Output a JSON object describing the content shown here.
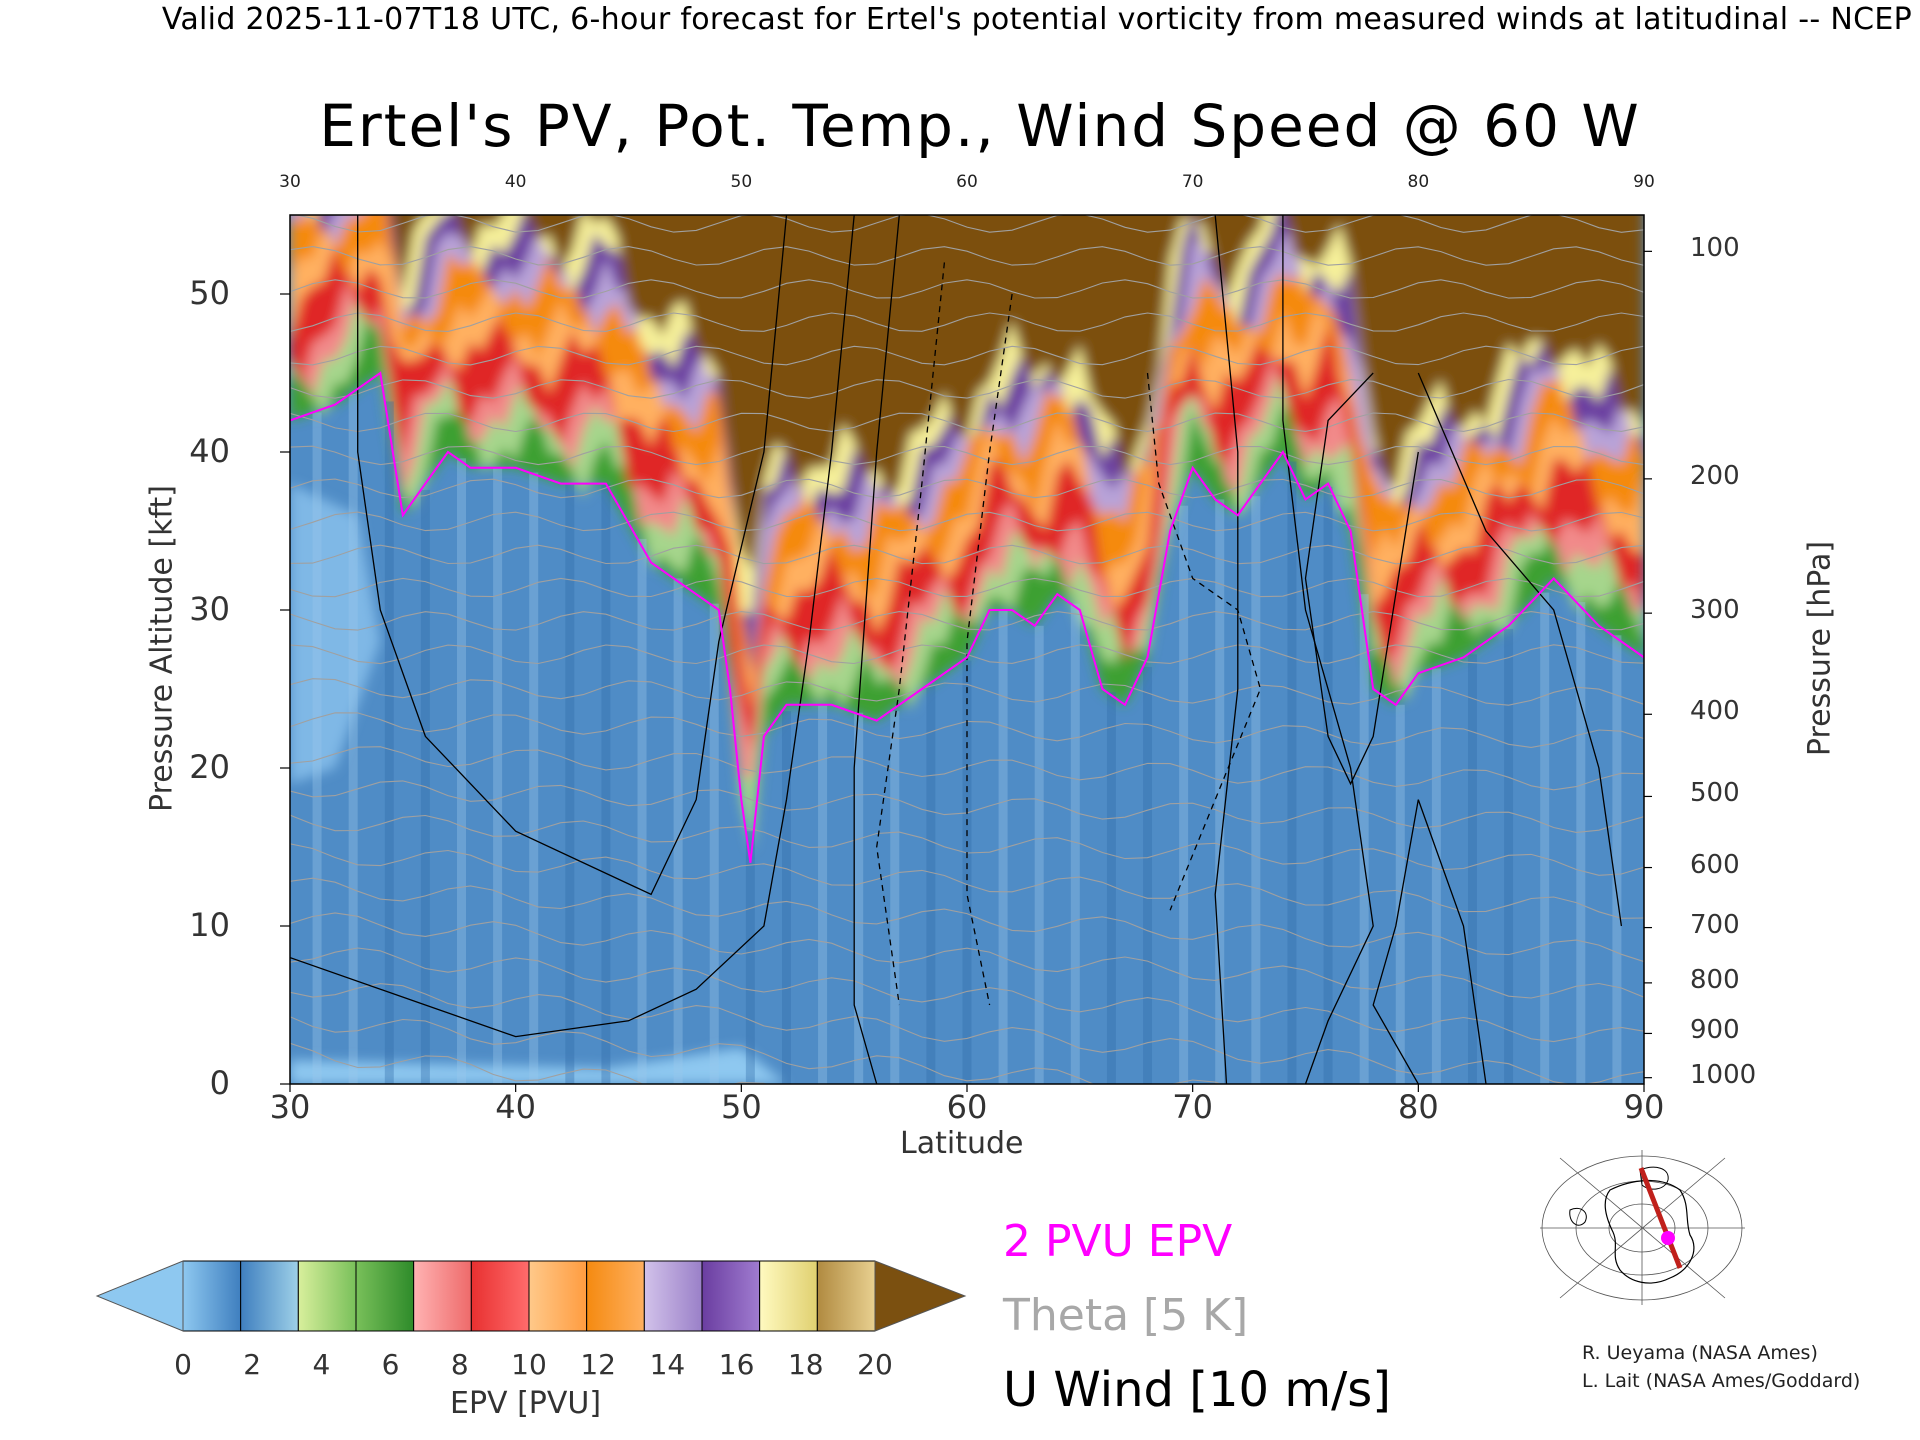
{
  "header": "Valid 2025-11-07T18 UTC, 6-hour forecast for Ertel's potential vorticity from measured winds at latitudinal -- NCEP",
  "chart_data": {
    "type": "heatmap",
    "title": "Ertel's PV, Pot. Temp., Wind Speed @ 60 W",
    "xlabel": "Latitude",
    "ylabel_left": "Pressure Altitude [kft]",
    "ylabel_right": "Pressure [hPa]",
    "xlim": [
      30,
      90
    ],
    "ylim": [
      0,
      55
    ],
    "x_ticks": [
      30,
      40,
      50,
      60,
      70,
      80,
      90
    ],
    "y_ticks": [
      0,
      10,
      20,
      30,
      40,
      50
    ],
    "right_ticks": [
      {
        "label": "100",
        "kft": 52.7
      },
      {
        "label": "200",
        "kft": 38.3
      },
      {
        "label": "300",
        "kft": 29.8
      },
      {
        "label": "400",
        "kft": 23.4
      },
      {
        "label": "500",
        "kft": 18.2
      },
      {
        "label": "600",
        "kft": 13.7
      },
      {
        "label": "700",
        "kft": 9.9
      },
      {
        "label": "800",
        "kft": 6.4
      },
      {
        "label": "900",
        "kft": 3.2
      },
      {
        "label": "1000",
        "kft": 0.4
      }
    ],
    "tropopause_2pvu_kft": [
      [
        30,
        42
      ],
      [
        32,
        43
      ],
      [
        33,
        44
      ],
      [
        34,
        45
      ],
      [
        35,
        36
      ],
      [
        36,
        38
      ],
      [
        37,
        40
      ],
      [
        38,
        39
      ],
      [
        40,
        39
      ],
      [
        42,
        38
      ],
      [
        44,
        38
      ],
      [
        46,
        33
      ],
      [
        48,
        31
      ],
      [
        49,
        30
      ],
      [
        49.5,
        25
      ],
      [
        50,
        18
      ],
      [
        50.4,
        14
      ],
      [
        51,
        22
      ],
      [
        52,
        24
      ],
      [
        54,
        24
      ],
      [
        56,
        23
      ],
      [
        58,
        25
      ],
      [
        60,
        27
      ],
      [
        61,
        30
      ],
      [
        62,
        30
      ],
      [
        63,
        29
      ],
      [
        64,
        31
      ],
      [
        65,
        30
      ],
      [
        66,
        25
      ],
      [
        67,
        24
      ],
      [
        68,
        27
      ],
      [
        69,
        35
      ],
      [
        70,
        39
      ],
      [
        71,
        37
      ],
      [
        72,
        36
      ],
      [
        73,
        38
      ],
      [
        74,
        40
      ],
      [
        75,
        37
      ],
      [
        76,
        38
      ],
      [
        77,
        35
      ],
      [
        78,
        25
      ],
      [
        79,
        24
      ],
      [
        80,
        26
      ],
      [
        82,
        27
      ],
      [
        84,
        29
      ],
      [
        86,
        32
      ],
      [
        88,
        29
      ],
      [
        90,
        27
      ]
    ],
    "u_wind_contours": [
      "0",
      "10",
      "30",
      "50"
    ],
    "colorbar": {
      "label": "EPV [PVU]",
      "ticks": [
        0,
        2,
        4,
        6,
        8,
        10,
        12,
        14,
        16,
        18,
        20
      ],
      "colors": [
        "#8ec8f0",
        "#3f7fbf",
        "#a6d58c",
        "#3ca030",
        "#f28a8a",
        "#e02828",
        "#ffb060",
        "#f58a10",
        "#b8a3d8",
        "#6a3da0",
        "#f6f09a",
        "#7b5010"
      ]
    },
    "legend": [
      {
        "label": "2 PVU EPV",
        "color": "#ff00ff"
      },
      {
        "label": "Theta [5 K]",
        "color": "#a8a8a8"
      },
      {
        "label": "U Wind [10 m/s]",
        "color": "#000000"
      }
    ]
  },
  "credits": {
    "line1": "R. Ueyama (NASA Ames)",
    "line2": "L. Lait (NASA Ames/Goddard)"
  }
}
